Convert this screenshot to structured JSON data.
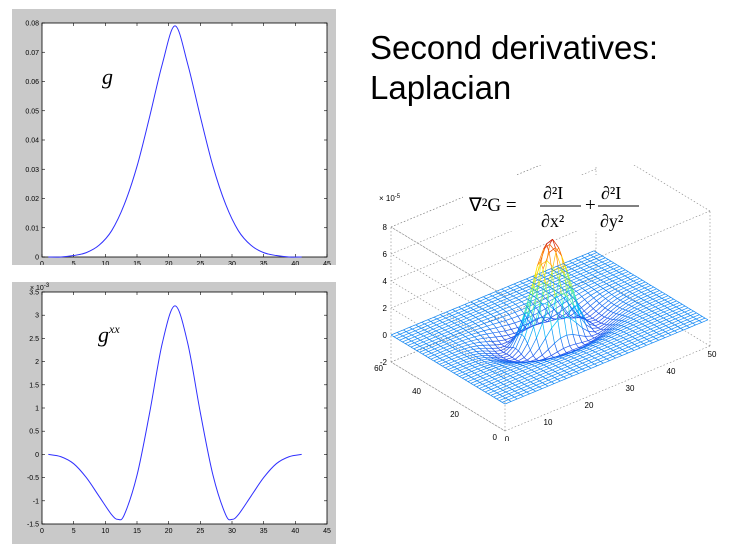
{
  "slide": {
    "title_line1": "Second derivatives:",
    "title_line2": "Laplacian"
  },
  "colors": {
    "curve": "#3030ff",
    "panel_bg": "#c9c9c9",
    "plot_bg": "#ffffff"
  },
  "chart_data": [
    {
      "type": "line",
      "annotation": "g",
      "xlim": [
        0,
        45
      ],
      "ylim": [
        0,
        0.08
      ],
      "xticks": [
        0,
        5,
        10,
        15,
        20,
        25,
        30,
        35,
        40,
        45
      ],
      "yticks": [
        0,
        0.01,
        0.02,
        0.03,
        0.04,
        0.05,
        0.06,
        0.07,
        0.08
      ],
      "ytick_labels": [
        "0",
        "0.01",
        "0.02",
        "0.03",
        "0.04",
        "0.05",
        "0.06",
        "0.07",
        "0.08"
      ],
      "series": [
        {
          "x": [
            1,
            3,
            5,
            7,
            9,
            11,
            13,
            15,
            17,
            19,
            21,
            23,
            25,
            27,
            29,
            31,
            33,
            35,
            37,
            39,
            41
          ],
          "values": [
            0,
            0,
            0.0005,
            0.0015,
            0.004,
            0.009,
            0.018,
            0.031,
            0.048,
            0.066,
            0.079,
            0.066,
            0.048,
            0.031,
            0.018,
            0.009,
            0.004,
            0.0015,
            0.0005,
            0,
            0
          ]
        }
      ]
    },
    {
      "type": "line",
      "annotation": "g",
      "annotation_sub": "xx",
      "y_multiplier": "× 10",
      "y_multiplier_exp": "-3",
      "xlim": [
        0,
        45
      ],
      "ylim": [
        -1.5,
        3.5
      ],
      "xticks": [
        0,
        5,
        10,
        15,
        20,
        25,
        30,
        35,
        40,
        45
      ],
      "yticks": [
        -1.5,
        -1,
        -0.5,
        0,
        0.5,
        1,
        1.5,
        2,
        2.5,
        3,
        3.5
      ],
      "ytick_labels": [
        "-1.5",
        "-1",
        "-0.5",
        "0",
        "0.5",
        "1",
        "1.5",
        "2",
        "2.5",
        "3",
        "3.5"
      ],
      "series": [
        {
          "x": [
            1,
            3,
            5,
            7,
            9,
            11,
            12,
            13,
            15,
            17,
            19,
            21,
            23,
            25,
            27,
            29,
            30,
            31,
            33,
            35,
            37,
            39,
            41
          ],
          "values": [
            0,
            -0.05,
            -0.2,
            -0.5,
            -0.9,
            -1.3,
            -1.4,
            -1.3,
            -0.45,
            0.9,
            2.4,
            3.2,
            2.4,
            0.9,
            -0.45,
            -1.3,
            -1.4,
            -1.3,
            -0.9,
            -0.5,
            -0.2,
            -0.05,
            0
          ]
        }
      ]
    },
    {
      "type": "surface",
      "z_multiplier": "× 10",
      "z_multiplier_exp": "-5",
      "zticks": [
        -2,
        0,
        2,
        4,
        6,
        8
      ],
      "xticks": [
        0,
        10,
        20,
        30,
        40,
        50
      ],
      "yticks": [
        0,
        20,
        40,
        60
      ],
      "equation": {
        "lhs": "∇²G =",
        "num": "∂²I",
        "den1": "∂x²",
        "den2": "∂y²",
        "plus": "+"
      }
    }
  ]
}
